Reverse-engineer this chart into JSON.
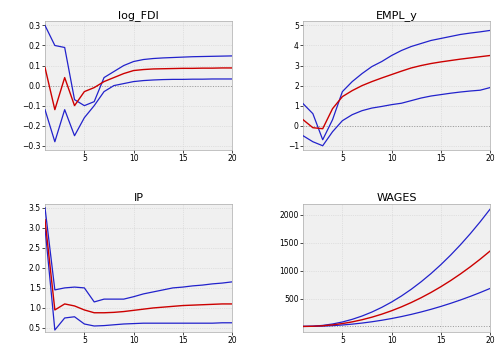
{
  "title_fontsize": 8,
  "label_fontsize": 6,
  "line_color_red": "#cc0000",
  "line_color_blue": "#2222cc",
  "background_color": "#ffffff",
  "panel_color": "#f0f0f0",
  "grid_color": "#d0d0d0",
  "zero_line_color": "#999999",
  "subplots": [
    {
      "title": "log_FDI",
      "xlim": [
        1,
        20
      ],
      "ylim": [
        -0.32,
        0.32
      ],
      "ytick_labels": [
        "-0.3",
        "-0.2",
        "-0.1",
        "0.0",
        "0.1",
        "0.2",
        "0.3"
      ],
      "yticks": [
        -0.3,
        -0.2,
        -0.1,
        0.0,
        0.1,
        0.2,
        0.3
      ],
      "xticks": [
        5,
        10,
        15,
        20
      ]
    },
    {
      "title": "EMPL_y",
      "xlim": [
        1,
        20
      ],
      "ylim": [
        -1.2,
        5.2
      ],
      "ytick_labels": [
        "-1",
        "0",
        "1",
        "2",
        "3",
        "4",
        "5"
      ],
      "yticks": [
        -1,
        0,
        1,
        2,
        3,
        4,
        5
      ],
      "xticks": [
        5,
        10,
        15,
        20
      ]
    },
    {
      "title": "IP",
      "xlim": [
        1,
        20
      ],
      "ylim": [
        0.4,
        3.6
      ],
      "ytick_labels": [
        "0.5",
        "1.0",
        "1.5",
        "2.0",
        "2.5",
        "3.0",
        "3.5"
      ],
      "yticks": [
        0.5,
        1.0,
        1.5,
        2.0,
        2.5,
        3.0,
        3.5
      ],
      "xticks": [
        5,
        10,
        15,
        20
      ]
    },
    {
      "title": "WAGES",
      "xlim": [
        1,
        20
      ],
      "ylim": [
        -100,
        2200
      ],
      "ytick_labels": [
        "500",
        "1000",
        "1500",
        "2000"
      ],
      "yticks": [
        500,
        1000,
        1500,
        2000
      ],
      "xticks": [
        5,
        10,
        15,
        20
      ]
    }
  ]
}
